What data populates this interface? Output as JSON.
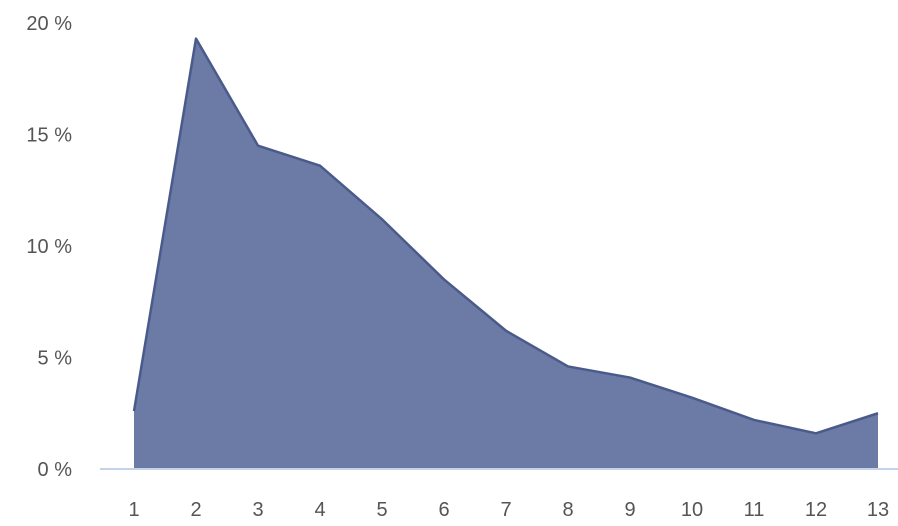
{
  "chart_data": {
    "type": "area",
    "title": "",
    "xlabel": "",
    "ylabel": "",
    "x": [
      "1",
      "2",
      "3",
      "4",
      "5",
      "6",
      "7",
      "8",
      "9",
      "10",
      "11",
      "12",
      "13"
    ],
    "series": [
      {
        "values": [
          2.6,
          19.3,
          14.5,
          13.6,
          11.2,
          8.5,
          6.2,
          4.6,
          4.1,
          3.2,
          2.2,
          1.6,
          2.5
        ]
      }
    ],
    "ylim": [
      0,
      20
    ],
    "yticks": [
      {
        "value": 0,
        "label": "0 %"
      },
      {
        "value": 5,
        "label": "5 %"
      },
      {
        "value": 10,
        "label": "10 %"
      },
      {
        "value": 15,
        "label": "15 %"
      },
      {
        "value": 20,
        "label": "20 %"
      }
    ],
    "grid": false,
    "colors": {
      "area_fill": "#6b7ba6",
      "area_line": "#4a5a8a",
      "baseline": "#c5d3ea"
    }
  }
}
